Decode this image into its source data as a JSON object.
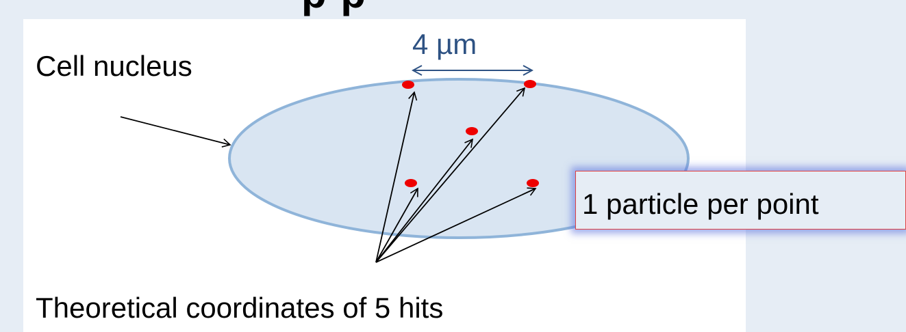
{
  "top_text": "p p",
  "labels": {
    "nucleus": "Cell nucleus",
    "scale": "4 µm",
    "hits": "Theoretical coordinates of 5 hits",
    "particle": "1 particle per point"
  },
  "points_count": 5,
  "colors": {
    "background": "#e6edf5",
    "panel": "#ffffff",
    "nucleus_fill": "#d9e5f2",
    "nucleus_stroke": "#8fb4d9",
    "hit_point": "#ee0000",
    "scale_text": "#2e5283",
    "scale_arrow": "#2e5283",
    "box_border": "#e04040"
  }
}
